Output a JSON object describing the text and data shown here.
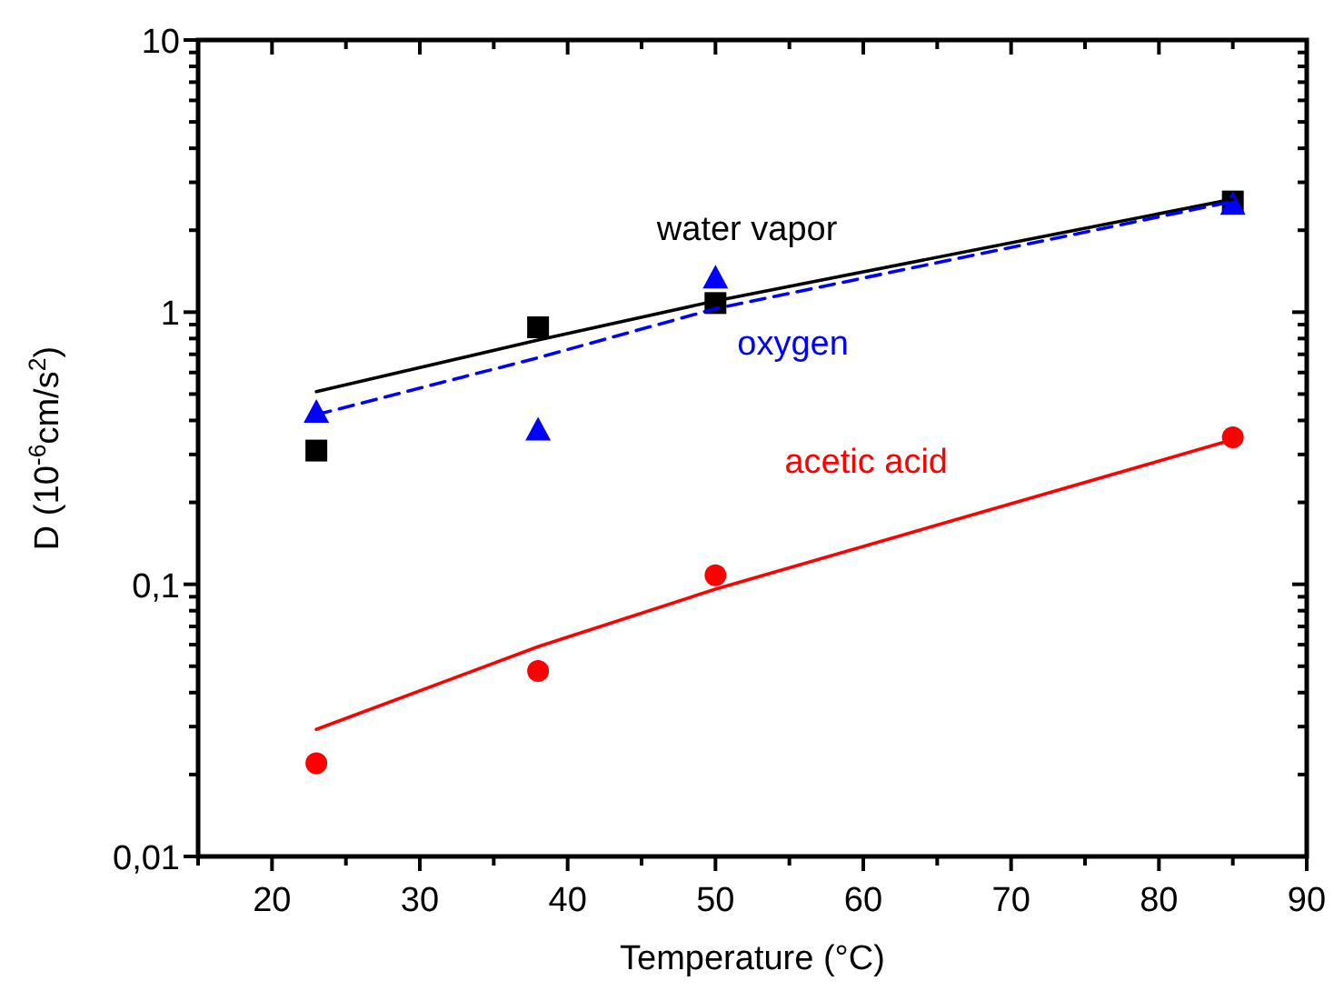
{
  "chart_data": {
    "type": "scatter",
    "xlabel": "Temperature (°C)",
    "ylabel": "D (10$^{-6}$cm/s$^{2}$)",
    "log": "y",
    "grid": false,
    "xlim": [
      15,
      90
    ],
    "xticks": [
      {
        "value": 15,
        "label": null
      },
      20,
      {
        "value": 25,
        "label": null
      },
      30,
      {
        "value": 35,
        "label": null
      },
      40,
      {
        "value": 45,
        "label": null
      },
      50,
      {
        "value": 55,
        "label": null
      },
      60,
      {
        "value": 65,
        "label": null
      },
      70,
      {
        "value": 75,
        "label": null
      },
      80,
      {
        "value": 85,
        "label": null
      },
      90
    ],
    "ylim": [
      0.01,
      10
    ],
    "yticks": [
      {
        "value": 0.01,
        "label": "0,01"
      },
      {
        "value": 0.02,
        "label": null
      },
      {
        "value": 0.03,
        "label": null
      },
      {
        "value": 0.04,
        "label": null
      },
      {
        "value": 0.05,
        "label": null
      },
      {
        "value": 0.06,
        "label": null
      },
      {
        "value": 0.07,
        "label": null
      },
      {
        "value": 0.08,
        "label": null
      },
      {
        "value": 0.09,
        "label": null
      },
      {
        "value": 0.1,
        "label": "0,1"
      },
      {
        "value": 0.2,
        "label": null
      },
      {
        "value": 0.3,
        "label": null
      },
      {
        "value": 0.4,
        "label": null
      },
      {
        "value": 0.5,
        "label": null
      },
      {
        "value": 0.6,
        "label": null
      },
      {
        "value": 0.7,
        "label": null
      },
      {
        "value": 0.8,
        "label": null
      },
      {
        "value": 0.9,
        "label": null
      },
      1,
      {
        "value": 2,
        "label": null
      },
      {
        "value": 3,
        "label": null
      },
      {
        "value": 4,
        "label": null
      },
      {
        "value": 5,
        "label": null
      },
      {
        "value": 6,
        "label": null
      },
      {
        "value": 7,
        "label": null
      },
      {
        "value": 8,
        "label": null
      },
      {
        "value": 9,
        "label": null
      },
      10
    ],
    "series": [
      {
        "marker": "square",
        "color": "#000000",
        "x": [
          23,
          38,
          50,
          85
        ],
        "values": [
          0.31,
          0.88,
          1.08,
          2.55
        ]
      },
      {
        "marker": "triangle",
        "color": "#0000ff",
        "x": [
          23,
          38,
          50,
          85
        ],
        "values": [
          0.43,
          0.37,
          1.34,
          2.5
        ]
      },
      {
        "marker": "circle",
        "color": "#ff0000",
        "x": [
          23,
          38,
          50,
          85
        ],
        "values": [
          0.022,
          0.048,
          0.108,
          0.347
        ]
      },
      {
        "type": "line",
        "name": "water vapor",
        "marker": "none",
        "line_style": "solid",
        "color": "#000000",
        "x": [
          23,
          38,
          50,
          85
        ],
        "values": [
          0.51,
          0.79,
          1.1,
          2.6
        ]
      },
      {
        "type": "line",
        "name": "oxygen",
        "marker": "none",
        "line_style": "dashed",
        "color": "#0000ff",
        "x": [
          23,
          38,
          50,
          85
        ],
        "values": [
          0.42,
          0.68,
          1.03,
          2.55
        ]
      },
      {
        "type": "line",
        "name": "acetic acid",
        "marker": "none",
        "line_style": "solid",
        "color": "#ff0000",
        "x": [
          23,
          38,
          50,
          85
        ],
        "values": [
          0.0293,
          0.059,
          0.096,
          0.34
        ]
      }
    ]
  }
}
